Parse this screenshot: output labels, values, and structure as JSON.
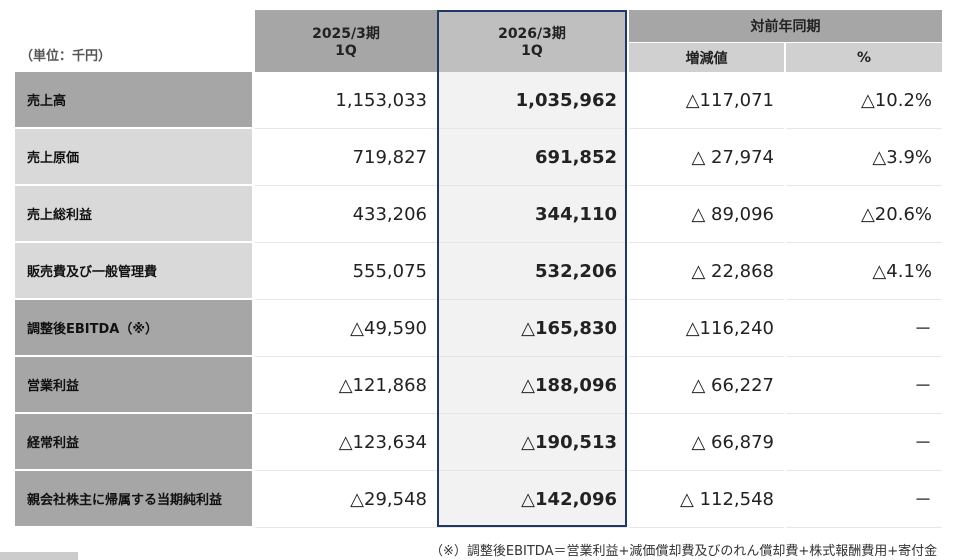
{
  "unit": "（単位：千円）",
  "header": {
    "prev": [
      "2025/3期",
      "1Q"
    ],
    "curr": [
      "2026/3期",
      "1Q"
    ],
    "yoy": "対前年同期",
    "diff": "増減値",
    "pct": "%"
  },
  "rows": [
    {
      "label": "売上高",
      "values": [
        "1,153,033",
        "1,035,962",
        "△117,071",
        "△10.2%"
      ]
    },
    {
      "label": "売上原価",
      "values": [
        "719,827",
        "691,852",
        "△ 27,974",
        "△3.9%"
      ]
    },
    {
      "label": "売上総利益",
      "values": [
        "433,206",
        "344,110",
        "△ 89,096",
        "△20.6%"
      ]
    },
    {
      "label": "販売費及び一般管理費",
      "values": [
        "555,075",
        "532,206",
        "△ 22,868",
        "△4.1%"
      ]
    },
    {
      "label": "調整後EBITDA（※）",
      "values": [
        "△49,590",
        "△165,830",
        "△116,240",
        "－"
      ]
    },
    {
      "label": "営業利益",
      "values": [
        "△121,868",
        "△188,096",
        "△ 66,227",
        "－"
      ]
    },
    {
      "label": "経常利益",
      "values": [
        "△123,634",
        "△190,513",
        "△ 66,879",
        "－"
      ]
    },
    {
      "label": "親会社株主に帰属する当期純利益",
      "values": [
        "△29,548",
        "△142,096",
        "△ 112,548",
        "－"
      ]
    }
  ],
  "footnote": "（※）調整後EBITDA＝営業利益+減価償却費及びのれん償却費+株式報酬費用+寄付金"
}
